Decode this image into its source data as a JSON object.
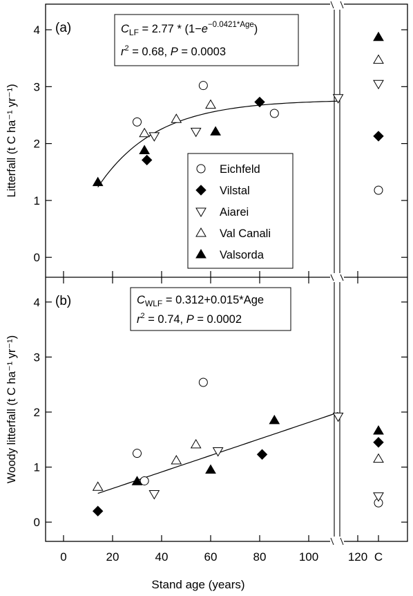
{
  "chart_data": [
    {
      "type": "scatter",
      "panel_label": "(a)",
      "ylabel": "Litterfall (t C ha⁻¹ yr⁻¹)",
      "ylim": [
        -0.35,
        4.45
      ],
      "yticks": [
        0,
        1,
        2,
        3,
        4
      ],
      "xlim": [
        -7,
        125
      ],
      "grid": false,
      "equation": "C_LF = 2.77 * (1−e^(−0.0421*Age))",
      "equation_parts": {
        "var": "C",
        "sub": "LF",
        "rhs": " = 2.77 * (1−",
        "e": "e",
        "exp": "−0.0421*Age",
        "close": ")"
      },
      "stats": "r² = 0.68, P = 0.0003",
      "stats_parts": {
        "r": "r",
        "sup": "2",
        "mid": " = 0.68, ",
        "p": "P",
        "end": " = 0.0003"
      },
      "fit": {
        "kind": "exponential_saturation",
        "a": 2.77,
        "k": 0.0421,
        "x_range": [
          14,
          112
        ]
      },
      "legend_position": "center-right",
      "series": [
        {
          "name": "Eichfeld",
          "marker": "open-circle",
          "points": [
            [
              30,
              2.38
            ],
            [
              57,
              3.02
            ],
            [
              86,
              2.53
            ]
          ],
          "c_value": 1.18
        },
        {
          "name": "Vilstal",
          "marker": "filled-diamond",
          "points": [
            [
              34,
              1.71
            ],
            [
              80,
              2.73
            ]
          ],
          "c_value": 2.13
        },
        {
          "name": "Aiarei",
          "marker": "open-triangle-down",
          "points": [
            [
              37,
              2.13
            ],
            [
              54,
              2.21
            ],
            [
              112,
              2.8
            ]
          ],
          "c_value": 3.05
        },
        {
          "name": "Val Canali",
          "marker": "open-triangle-up",
          "points": [
            [
              33,
              2.18
            ],
            [
              46,
              2.43
            ],
            [
              60,
              2.68
            ]
          ],
          "c_value": 3.47
        },
        {
          "name": "Valsorda",
          "marker": "filled-triangle-up",
          "points": [
            [
              14,
              1.32
            ],
            [
              33,
              1.88
            ],
            [
              62,
              2.21
            ]
          ],
          "c_value": 3.87
        }
      ]
    },
    {
      "type": "scatter",
      "panel_label": "(b)",
      "ylabel": "Woody litterfall (t C ha⁻¹ yr⁻¹)",
      "ylim": [
        -0.35,
        4.45
      ],
      "yticks": [
        0,
        1,
        2,
        3,
        4
      ],
      "xlim": [
        -7,
        125
      ],
      "grid": false,
      "equation": "C_WLF = 0.312+0.015*Age",
      "equation_parts": {
        "var": "C",
        "sub": "WLF",
        "rhs": " = 0.312+0.015*Age"
      },
      "stats": "r² = 0.74, P = 0.0002",
      "stats_parts": {
        "r": "r",
        "sup": "2",
        "mid": " = 0.74, ",
        "p": "P",
        "end": " = 0.0002"
      },
      "fit": {
        "kind": "linear",
        "intercept": 0.312,
        "slope": 0.015,
        "x_range": [
          14,
          112
        ]
      },
      "series": [
        {
          "name": "Eichfeld",
          "marker": "open-circle",
          "points": [
            [
              30,
              1.25
            ],
            [
              33,
              0.75
            ],
            [
              57,
              2.54
            ]
          ],
          "c_value": 0.35
        },
        {
          "name": "Vilstal",
          "marker": "filled-diamond",
          "points": [
            [
              14,
              0.2
            ],
            [
              81,
              1.23
            ]
          ],
          "c_value": 1.45
        },
        {
          "name": "Aiarei",
          "marker": "open-triangle-down",
          "points": [
            [
              37,
              0.51
            ],
            [
              63,
              1.29
            ],
            [
              112,
              1.92
            ]
          ],
          "c_value": 0.47
        },
        {
          "name": "Val Canali",
          "marker": "open-triangle-up",
          "points": [
            [
              14,
              0.64
            ],
            [
              46,
              1.12
            ],
            [
              54,
              1.41
            ]
          ],
          "c_value": 1.15
        },
        {
          "name": "Valsorda",
          "marker": "filled-triangle-up",
          "points": [
            [
              30,
              0.74
            ],
            [
              60,
              0.95
            ],
            [
              86,
              1.85
            ]
          ],
          "c_value": 1.66
        }
      ]
    }
  ],
  "x_axis": {
    "label": "Stand age (years)",
    "ticks": [
      0,
      20,
      40,
      60,
      80,
      100,
      120
    ],
    "c_label": "C"
  }
}
